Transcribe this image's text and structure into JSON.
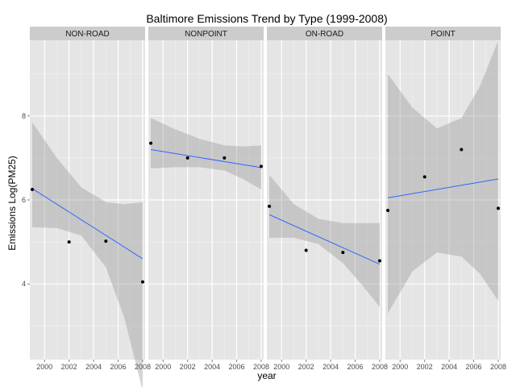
{
  "chart_data": {
    "type": "scatter",
    "title": "Baltimore Emissions Trend by Type (1999-2008)",
    "xlabel": "year",
    "ylabel": "Emissions Log(PM25)",
    "x_ticks": [
      "2000",
      "2002",
      "2004",
      "2006",
      "2008"
    ],
    "y_ticks": [
      "4",
      "6",
      "8"
    ],
    "xlim": [
      1998.8,
      2008.2
    ],
    "ylim": [
      2.2,
      9.8
    ],
    "grid": true,
    "colors": {
      "panel_bg": "#e5e5e5",
      "strip_bg": "#cccccc",
      "grid_major": "#ffffff",
      "grid_minor": "#f2f2f2",
      "ribbon": "#999999",
      "fit_line": "#3366ff",
      "points": "#000000"
    },
    "facets": [
      {
        "name": "NON-ROAD",
        "points": [
          [
            1999,
            6.25
          ],
          [
            2002,
            5.0
          ],
          [
            2005,
            5.02
          ],
          [
            2008,
            4.05
          ]
        ],
        "fit": [
          [
            1999,
            6.27
          ],
          [
            2008,
            4.6
          ]
        ],
        "ribbon_upper": [
          [
            1999,
            7.85
          ],
          [
            2001,
            7.0
          ],
          [
            2003,
            6.3
          ],
          [
            2005,
            5.95
          ],
          [
            2006.5,
            5.9
          ],
          [
            2008,
            5.95
          ]
        ],
        "ribbon_lower": [
          [
            1999,
            5.35
          ],
          [
            2001,
            5.33
          ],
          [
            2003,
            5.15
          ],
          [
            2005,
            4.4
          ],
          [
            2006.5,
            3.2
          ],
          [
            2008,
            1.45
          ]
        ]
      },
      {
        "name": "NONPOINT",
        "points": [
          [
            1999,
            7.35
          ],
          [
            2002,
            7.0
          ],
          [
            2005,
            7.0
          ],
          [
            2008,
            6.8
          ]
        ],
        "fit": [
          [
            1999,
            7.2
          ],
          [
            2008,
            6.77
          ]
        ],
        "ribbon_upper": [
          [
            1999,
            7.95
          ],
          [
            2001,
            7.68
          ],
          [
            2003,
            7.45
          ],
          [
            2005,
            7.3
          ],
          [
            2006.5,
            7.27
          ],
          [
            2008,
            7.3
          ]
        ],
        "ribbon_lower": [
          [
            1999,
            6.75
          ],
          [
            2001,
            6.78
          ],
          [
            2003,
            6.78
          ],
          [
            2005,
            6.7
          ],
          [
            2006.5,
            6.5
          ],
          [
            2008,
            6.25
          ]
        ]
      },
      {
        "name": "ON-ROAD",
        "points": [
          [
            1999,
            5.85
          ],
          [
            2002,
            4.8
          ],
          [
            2005,
            4.75
          ],
          [
            2008,
            4.55
          ]
        ],
        "fit": [
          [
            1999,
            5.65
          ],
          [
            2008,
            4.47
          ]
        ],
        "ribbon_upper": [
          [
            1999,
            6.6
          ],
          [
            2001,
            5.9
          ],
          [
            2003,
            5.55
          ],
          [
            2005,
            5.45
          ],
          [
            2006.5,
            5.45
          ],
          [
            2008,
            5.45
          ]
        ],
        "ribbon_lower": [
          [
            1999,
            5.1
          ],
          [
            2001,
            5.1
          ],
          [
            2003,
            4.95
          ],
          [
            2005,
            4.5
          ],
          [
            2006.5,
            4.0
          ],
          [
            2008,
            3.45
          ]
        ]
      },
      {
        "name": "POINT",
        "points": [
          [
            1999,
            5.75
          ],
          [
            2002,
            6.55
          ],
          [
            2005,
            7.2
          ],
          [
            2008,
            5.8
          ]
        ],
        "fit": [
          [
            1999,
            6.05
          ],
          [
            2008,
            6.5
          ]
        ],
        "ribbon_upper": [
          [
            1999,
            9.0
          ],
          [
            2001,
            8.2
          ],
          [
            2003,
            7.7
          ],
          [
            2005,
            7.95
          ],
          [
            2006.5,
            8.7
          ],
          [
            2008,
            9.8
          ]
        ],
        "ribbon_lower": [
          [
            1999,
            3.3
          ],
          [
            2001,
            4.3
          ],
          [
            2003,
            4.75
          ],
          [
            2005,
            4.65
          ],
          [
            2006.5,
            4.25
          ],
          [
            2008,
            3.6
          ]
        ]
      }
    ]
  }
}
